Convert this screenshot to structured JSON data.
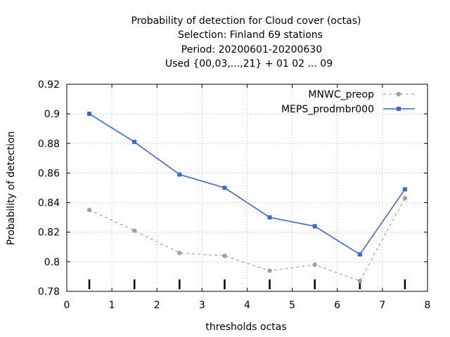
{
  "chart_data": {
    "type": "line",
    "title_lines": [
      "Probability of detection  for Cloud cover (octas)",
      "Selection: Finland     69 stations",
      "Period: 20200601-20200630",
      "Used {00,03,...,21} + 01 02 ... 09"
    ],
    "xlabel": "thresholds octas",
    "ylabel": "Probability of detection",
    "xlim": [
      0,
      8
    ],
    "ylim": [
      0.78,
      0.92
    ],
    "xticks": [
      "0",
      "1",
      "2",
      "3",
      "4",
      "5",
      "6",
      "7",
      "8"
    ],
    "yticks": [
      "0.78",
      "0.8",
      "0.82",
      "0.84",
      "0.86",
      "0.88",
      "0.9",
      "0.92"
    ],
    "grid": true,
    "legend_position": "top-right",
    "x": [
      0.5,
      1.5,
      2.5,
      3.5,
      4.5,
      5.5,
      6.5,
      7.5
    ],
    "series": [
      {
        "name": "MNWC_preop",
        "color": "#a0a0a0",
        "dashed": true,
        "values": [
          0.835,
          0.821,
          0.806,
          0.804,
          0.794,
          0.798,
          0.787,
          0.843
        ]
      },
      {
        "name": "MEPS_prodmbr000",
        "color": "#3b67d6",
        "dashed": false,
        "values": [
          0.9,
          0.881,
          0.859,
          0.85,
          0.83,
          0.824,
          0.805,
          0.849
        ]
      }
    ]
  }
}
